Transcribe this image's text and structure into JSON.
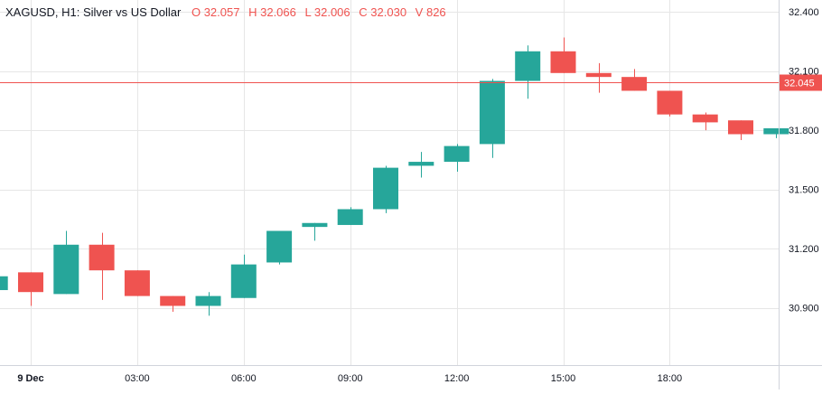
{
  "legend": {
    "symbol": "XAGUSD, H1: Silver vs US Dollar",
    "o_label": "O",
    "o_value": "32.057",
    "h_label": "H",
    "h_value": "32.066",
    "l_label": "L",
    "l_value": "32.006",
    "c_label": "C",
    "c_value": "32.030",
    "v_label": "V",
    "v_value": "826"
  },
  "colors": {
    "up": "#26a69a",
    "down": "#ef5350",
    "grid": "#e6e6e6",
    "axis_text": "#131722",
    "price_line": "#ef5350"
  },
  "chart_data": {
    "type": "candlestick",
    "title": "XAGUSD, H1: Silver vs US Dollar",
    "yticks": [
      30.9,
      31.2,
      31.5,
      31.8,
      32.1,
      32.4
    ],
    "ytick_labels": [
      "30.900",
      "31.200",
      "31.500",
      "31.800",
      "32.100",
      "32.400"
    ],
    "ylim": [
      30.61,
      32.46
    ],
    "xticks": [
      {
        "index": 0,
        "label": "9 Dec"
      },
      {
        "index": 3,
        "label": "03:00"
      },
      {
        "index": 6,
        "label": "06:00"
      },
      {
        "index": 9,
        "label": "09:00"
      },
      {
        "index": 12,
        "label": "12:00"
      },
      {
        "index": 15,
        "label": "15:00"
      },
      {
        "index": 18,
        "label": "18:00"
      }
    ],
    "current_price": 32.045,
    "current_price_label": "32.045",
    "grid": true,
    "candles": [
      {
        "i": -1,
        "o": 30.99,
        "h": 31.06,
        "l": 30.99,
        "c": 31.06
      },
      {
        "i": 0,
        "o": 31.08,
        "h": 31.08,
        "l": 30.91,
        "c": 30.98
      },
      {
        "i": 1,
        "o": 30.97,
        "h": 31.29,
        "l": 30.97,
        "c": 31.22
      },
      {
        "i": 2,
        "o": 31.22,
        "h": 31.28,
        "l": 30.94,
        "c": 31.09
      },
      {
        "i": 3,
        "o": 31.09,
        "h": 31.09,
        "l": 30.96,
        "c": 30.96
      },
      {
        "i": 4,
        "o": 30.96,
        "h": 30.96,
        "l": 30.88,
        "c": 30.91
      },
      {
        "i": 5,
        "o": 30.91,
        "h": 30.98,
        "l": 30.86,
        "c": 30.96
      },
      {
        "i": 6,
        "o": 30.95,
        "h": 31.17,
        "l": 30.95,
        "c": 31.12
      },
      {
        "i": 7,
        "o": 31.13,
        "h": 31.29,
        "l": 31.12,
        "c": 31.29
      },
      {
        "i": 8,
        "o": 31.31,
        "h": 31.33,
        "l": 31.24,
        "c": 31.33
      },
      {
        "i": 9,
        "o": 31.32,
        "h": 31.41,
        "l": 31.32,
        "c": 31.4
      },
      {
        "i": 10,
        "o": 31.4,
        "h": 31.62,
        "l": 31.38,
        "c": 31.61
      },
      {
        "i": 11,
        "o": 31.62,
        "h": 31.69,
        "l": 31.56,
        "c": 31.64
      },
      {
        "i": 12,
        "o": 31.64,
        "h": 31.73,
        "l": 31.59,
        "c": 31.72
      },
      {
        "i": 13,
        "o": 31.73,
        "h": 32.06,
        "l": 31.66,
        "c": 32.05
      },
      {
        "i": 14,
        "o": 32.05,
        "h": 32.23,
        "l": 31.96,
        "c": 32.2
      },
      {
        "i": 15,
        "o": 32.2,
        "h": 32.27,
        "l": 32.09,
        "c": 32.09
      },
      {
        "i": 16,
        "o": 32.09,
        "h": 32.14,
        "l": 31.99,
        "c": 32.07
      },
      {
        "i": 17,
        "o": 32.07,
        "h": 32.11,
        "l": 32.0,
        "c": 32.0
      },
      {
        "i": 18,
        "o": 32.0,
        "h": 32.0,
        "l": 31.87,
        "c": 31.88
      },
      {
        "i": 19,
        "o": 31.88,
        "h": 31.89,
        "l": 31.8,
        "c": 31.84
      },
      {
        "i": 20,
        "o": 31.85,
        "h": 31.85,
        "l": 31.75,
        "c": 31.78
      },
      {
        "i": 21,
        "o": 31.78,
        "h": 31.81,
        "l": 31.76,
        "c": 31.81
      }
    ]
  }
}
